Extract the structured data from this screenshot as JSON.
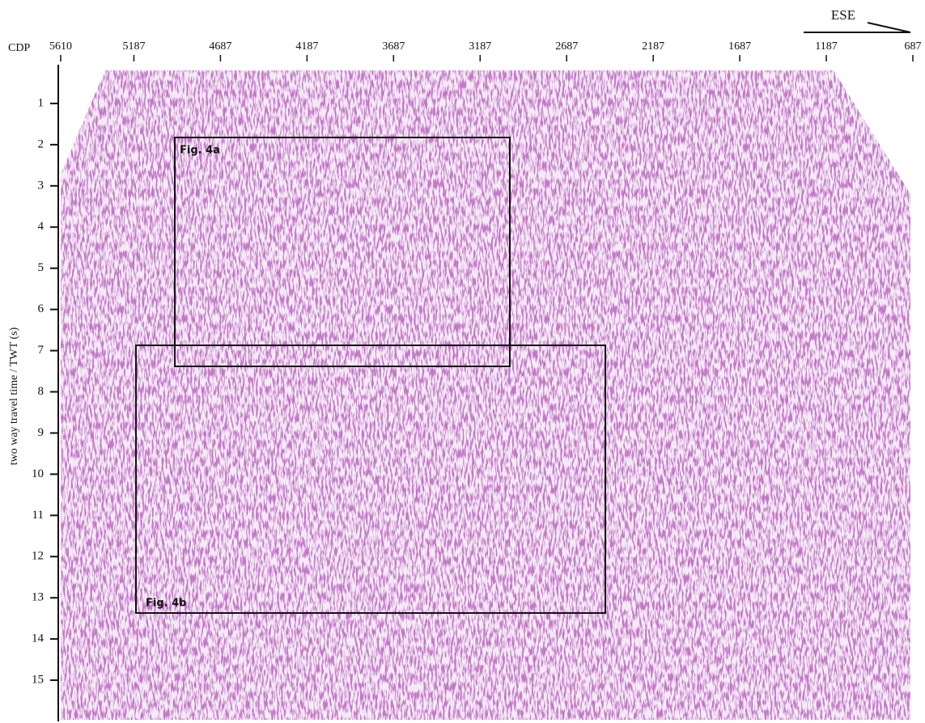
{
  "chart_data": {
    "type": "seismic",
    "x_label": "CDP",
    "y_label": "two way travel time / TWT (s)",
    "direction": "ESE",
    "xlim": [
      5610,
      687
    ],
    "xticks": [
      5610,
      5187,
      4687,
      4187,
      3687,
      3187,
      2687,
      2187,
      1687,
      1187,
      687
    ],
    "ylim": [
      0,
      16
    ],
    "yticks": [
      1,
      2,
      3,
      4,
      5,
      6,
      7,
      8,
      9,
      10,
      11,
      12,
      13,
      14,
      15
    ],
    "annotations": [
      "Fig. 4a",
      "Fig. 4b"
    ]
  }
}
